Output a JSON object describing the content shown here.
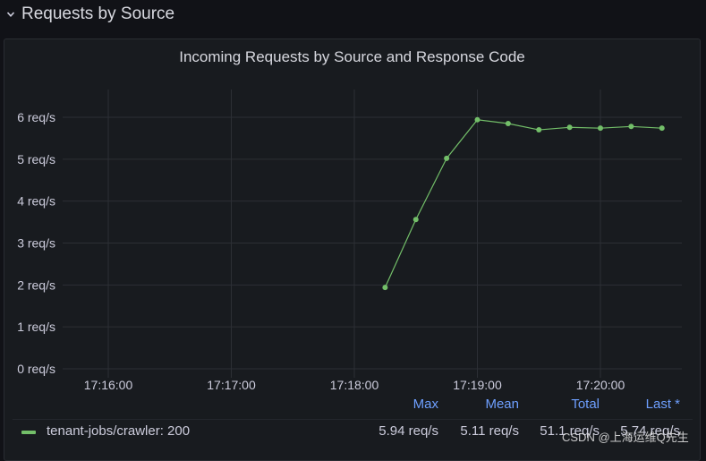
{
  "row": {
    "title": "Requests by Source"
  },
  "panel": {
    "title": "Incoming Requests by Source and Response Code"
  },
  "chart_data": {
    "type": "line",
    "title": "Incoming Requests by Source and Response Code",
    "xlabel": "",
    "ylabel": "",
    "y_ticks": [
      "0 req/s",
      "1 req/s",
      "2 req/s",
      "3 req/s",
      "4 req/s",
      "5 req/s",
      "6 req/s"
    ],
    "x_ticks": [
      "17:16:00",
      "17:17:00",
      "17:18:00",
      "17:19:00",
      "17:20:00"
    ],
    "ylim": [
      0,
      6.6
    ],
    "grid": true,
    "legend_placement": "bottom",
    "series": [
      {
        "name": "tenant-jobs/crawler: 200",
        "color": "#73bf69",
        "x": [
          "17:18:15",
          "17:18:30",
          "17:18:45",
          "17:19:00",
          "17:19:15",
          "17:19:30",
          "17:19:45",
          "17:20:00",
          "17:20:15",
          "17:20:30"
        ],
        "values": [
          1.94,
          3.56,
          5.02,
          5.94,
          5.85,
          5.7,
          5.76,
          5.74,
          5.78,
          5.74
        ]
      }
    ]
  },
  "legend": {
    "headers": {
      "max": "Max",
      "mean": "Mean",
      "total": "Total",
      "last": "Last *"
    },
    "rows": [
      {
        "name": "tenant-jobs/crawler: 200",
        "max": "5.94 req/s",
        "mean": "5.11 req/s",
        "total": "51.1 req/s",
        "last": "5.74 req/s"
      }
    ]
  },
  "watermark": "CSDN @上海运维Q先生"
}
